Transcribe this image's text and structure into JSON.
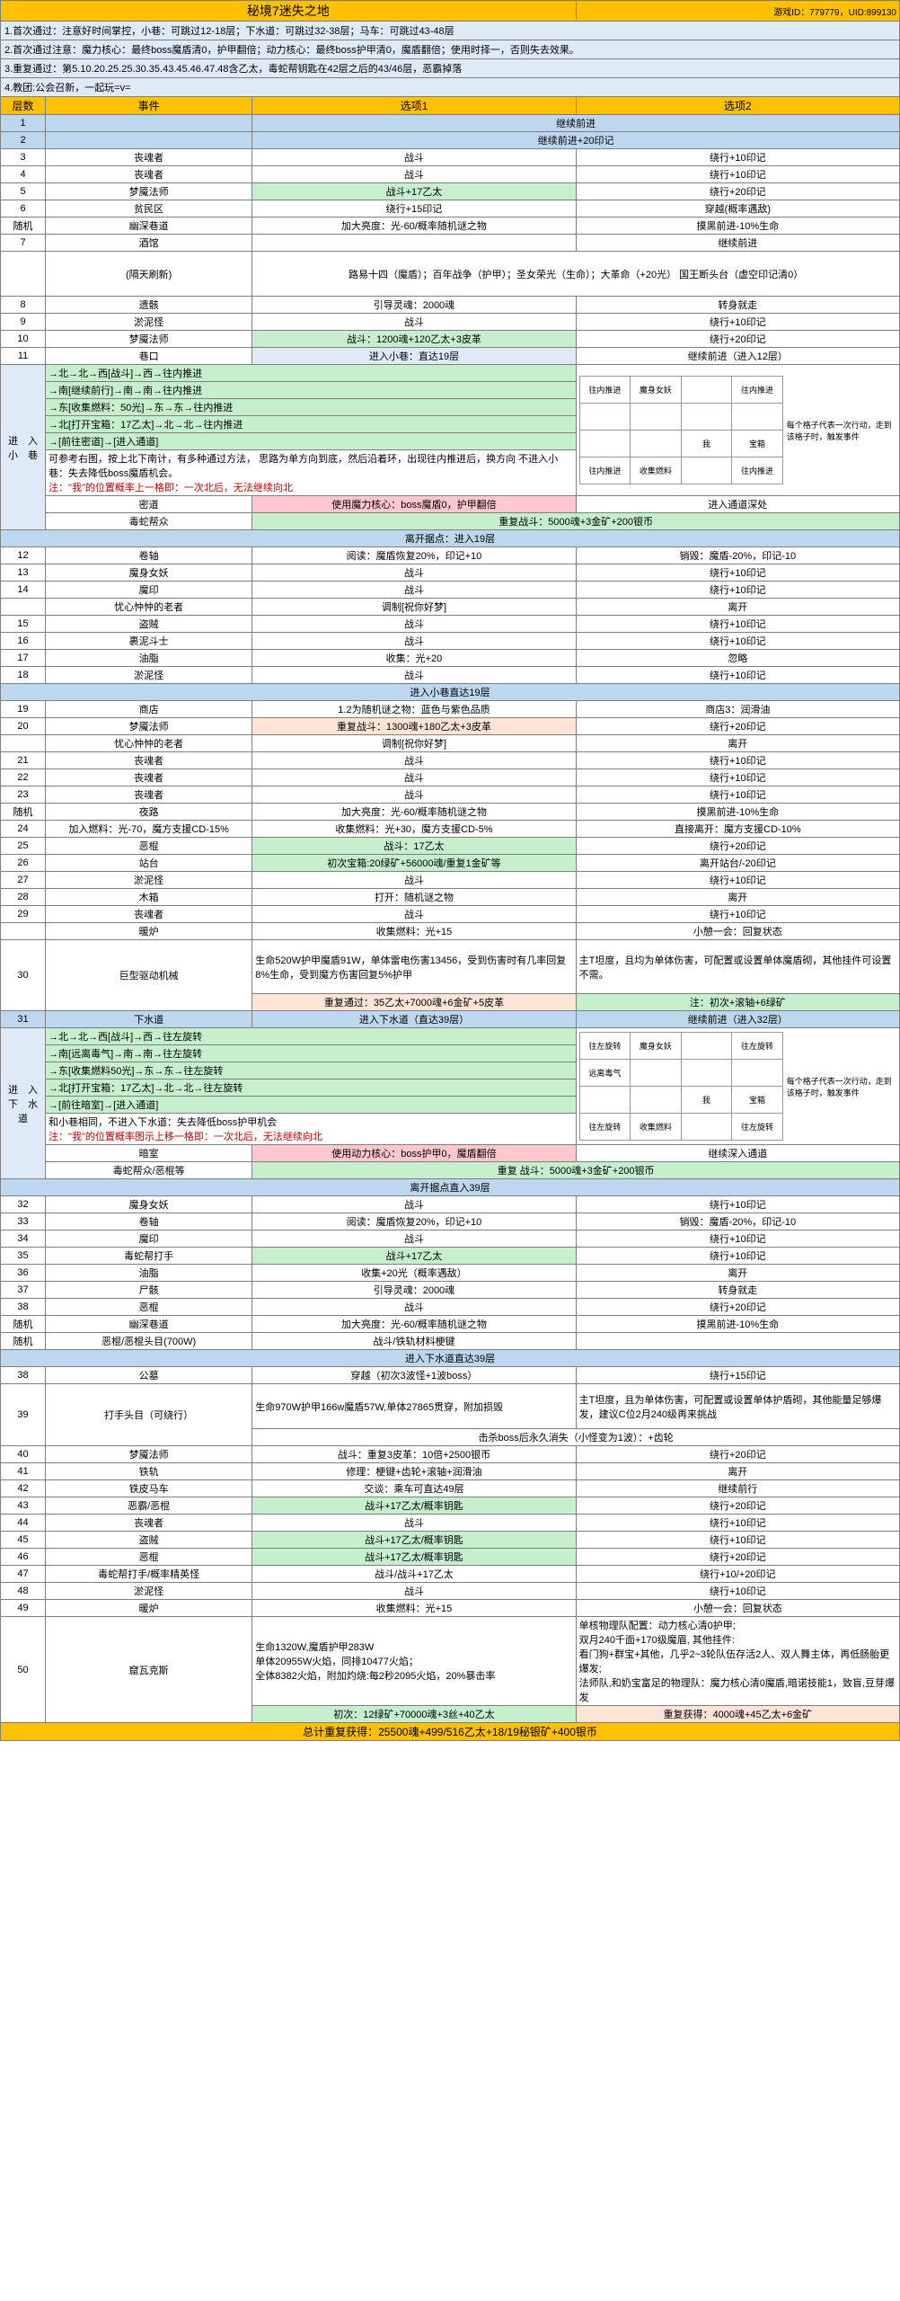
{
  "title": "秘境7迷失之地",
  "gameId": "游戏ID：779779，UID:899130",
  "notes": [
    "1.首次通过：注意好时间掌控，小巷：可跳过12-18层；下水道：可跳过32-38层；马车：可跳过43-48层",
    "2.首次通过注意：魔力核心：最终boss魔盾清0，护甲翻倍；动力核心：最终boss护甲清0，魔盾翻倍；使用时择一，否则失去效果。",
    "3.重复通过：第5.10.20.25.25.30.35.43.45.46.47.48含乙太，毒蛇帮钥匙在42层之后的43/46层，恶霸掉落",
    "4.教团:公会召新，一起玩=v="
  ],
  "headers": {
    "layer": "层数",
    "event": "事件",
    "opt1": "选项1",
    "opt2": "选项2"
  },
  "rows": [
    {
      "n": "1",
      "ev": "",
      "o1": "继续前进",
      "o2": "",
      "cls": "blue-section",
      "span": 2
    },
    {
      "n": "2",
      "ev": "",
      "o1": "继续前进+20印记",
      "o2": "",
      "cls": "blue-section",
      "span": 2
    },
    {
      "n": "3",
      "ev": "丧魂者",
      "o1": "战斗",
      "o2": "绕行+10印记"
    },
    {
      "n": "4",
      "ev": "丧魂者",
      "o1": "战斗",
      "o2": "绕行+10印记"
    },
    {
      "n": "5",
      "ev": "梦魇法师",
      "o1": "战斗+17乙太",
      "o1c": "green-cell",
      "o2": "绕行+20印记"
    },
    {
      "n": "6",
      "ev": "贫民区",
      "o1": "绕行+15印记",
      "o2": "穿越(概率遇敌)"
    },
    {
      "n": "随机",
      "ev": "幽深巷道",
      "o1": "加大亮度：光-60/概率随机谜之物",
      "o2": "摸黑前进-10%生命"
    },
    {
      "n": "7",
      "ev": "酒馆",
      "o1": "",
      "o2": "继续前进",
      "span": 1
    },
    {
      "n": "",
      "ev": "(隔天刷新)",
      "o1": "路易十四（魔盾）；百年战争（护甲）；圣女荣光（生命）；大革命（+20光） 国王断头台（虚空印记清0）",
      "o2": "",
      "span": 2,
      "tall": 1
    },
    {
      "n": "8",
      "ev": "遗骸",
      "o1": "引导灵魂：2000魂",
      "o2": "转身就走"
    },
    {
      "n": "9",
      "ev": "淤泥怪",
      "o1": "战斗",
      "o2": "绕行+10印记"
    },
    {
      "n": "10",
      "ev": "梦魇法师",
      "o1": "战斗：1200魂+120乙太+3皮革",
      "o1c": "green-cell",
      "o2": "绕行+20印记"
    },
    {
      "n": "11",
      "ev": "巷口",
      "o1": "进入小巷：直达19层",
      "o1c": "blue-pale",
      "o2": "继续前进（进入12层）"
    }
  ],
  "alley": {
    "title": "进　入　小　巷",
    "steps": [
      "→北→北→西[战斗]→西→往内推进",
      "→南[继续前行]→南→南→往内推进",
      "→东[收集燃料：50光]→东→东→往内推进",
      "→北[打开宝箱：17乙太]→北→北→往内推进",
      "→[前往密道]→[进入通道]"
    ],
    "desc": "可参考右图，按上北下南计，有多种通过方法，\n思路为单方向到底，然后沿着环，出现往内推进后，换方向\n不进入小巷：失去降低boss魔盾机会。",
    "warn": "注：\"我\"的位置概率上一格即：一次北后，无法继续向北",
    "grid": [
      [
        "往内推进",
        "魔身女妖",
        "",
        "往内推进"
      ],
      [
        "",
        "",
        "",
        ""
      ],
      [
        "",
        "",
        "我",
        "宝箱"
      ],
      [
        "往内推进",
        "收集燃料",
        "",
        "往内推进"
      ]
    ],
    "gridNote": "每个格子代表一次行动，走到该格子时，触发事件",
    "rows": [
      {
        "ev": "密道",
        "o1": "使用魔力核心：boss魔盾0，护甲翻倍",
        "o1c": "red-cell",
        "o2": "进入通道深处"
      },
      {
        "ev": "毒蛇帮众",
        "o1": "重复战斗：5000魂+3金矿+200银币",
        "o1c": "green-cell",
        "o2": ""
      }
    ]
  },
  "section12": {
    "title": "离开据点：进入19层"
  },
  "rows2": [
    {
      "n": "12",
      "ev": "卷轴",
      "o1": "阅读：魔盾恢复20%，印记+10",
      "o2": "销毁：魔盾-20%，印记-10"
    },
    {
      "n": "13",
      "ev": "魔身女妖",
      "o1": "战斗",
      "o2": "绕行+10印记"
    },
    {
      "n": "14",
      "ev": "魔印",
      "o1": "战斗",
      "o2": "绕行+10印记"
    },
    {
      "n": "",
      "ev": "忧心忡忡的老者",
      "o1": "调制[祝你好梦]",
      "o2": "离开"
    },
    {
      "n": "15",
      "ev": "盗贼",
      "o1": "战斗",
      "o2": "绕行+10印记"
    },
    {
      "n": "16",
      "ev": "裹泥斗士",
      "o1": "战斗",
      "o2": "绕行+10印记"
    },
    {
      "n": "17",
      "ev": "油脂",
      "o1": "收集：光+20",
      "o2": "忽略"
    },
    {
      "n": "18",
      "ev": "淤泥怪",
      "o1": "战斗",
      "o2": "绕行+10印记"
    }
  ],
  "section19": {
    "title": "进入小巷直达19层"
  },
  "rows3": [
    {
      "n": "19",
      "ev": "商店",
      "o1": "1.2为随机谜之物：蓝色与紫色品质",
      "o2": "商店3：润滑油"
    },
    {
      "n": "20",
      "ev": "梦魇法师",
      "o1": "重复战斗：1300魂+180乙太+3皮革",
      "o1c": "pink-cell",
      "o2": "绕行+20印记"
    },
    {
      "n": "",
      "ev": "忧心忡忡的老者",
      "o1": "调制[祝你好梦]",
      "o2": "离开"
    },
    {
      "n": "21",
      "ev": "丧魂者",
      "o1": "战斗",
      "o2": "绕行+10印记"
    },
    {
      "n": "22",
      "ev": "丧魂者",
      "o1": "战斗",
      "o2": "绕行+10印记"
    },
    {
      "n": "23",
      "ev": "丧魂者",
      "o1": "战斗",
      "o2": "绕行+10印记"
    },
    {
      "n": "随机",
      "ev": "夜路",
      "o1": "加大亮度：光-60/概率随机谜之物",
      "o2": "摸黑前进-10%生命"
    },
    {
      "n": "24",
      "ev": "加入燃料：光-70，魔方支援CD-15%",
      "o1": "收集燃料：光+30，魔方支援CD-5%",
      "o2": "直接离开：魔方支援CD-10%"
    },
    {
      "n": "25",
      "ev": "恶棍",
      "o1": "战斗：17乙太",
      "o1c": "green-cell",
      "o2": "绕行+20印记"
    },
    {
      "n": "26",
      "ev": "站台",
      "o1": "初次宝箱:20绿矿+56000魂/重复1金矿等",
      "o1c": "green-cell",
      "o2": "离开站台/-20印记"
    },
    {
      "n": "27",
      "ev": "淤泥怪",
      "o1": "战斗",
      "o2": "绕行+10印记"
    },
    {
      "n": "28",
      "ev": "木箱",
      "o1": "打开：随机谜之物",
      "o2": "离开"
    },
    {
      "n": "29",
      "ev": "丧魂者",
      "o1": "战斗",
      "o2": "绕行+10印记"
    },
    {
      "n": "",
      "ev": "暖炉",
      "o1": "收集燃料：光+15",
      "o2": "小憩一会：回复状态"
    }
  ],
  "boss30": {
    "n": "30",
    "ev": "巨型驱动机械",
    "desc": "生命520W护甲魔盾91W，单体雷电伤害13456，受到伤害时有几率回复8%生命，受到魔方伤害回复5%护甲",
    "note": "主T坦度，且均为单体伤害，可配置或设置单体魔盾砌，其他挂件可设置不需。",
    "r1": "重复通过：35乙太+7000魂+6金矿+5皮革",
    "r1c": "pink-cell",
    "r2": "注：初次+滚轴+6绿矿",
    "r2c": "green-cell"
  },
  "row31": {
    "n": "31",
    "ev": "下水道",
    "o1": "进入下水道（直达39层）",
    "o2": "继续前进（进入32层）"
  },
  "sewer": {
    "title": "进　入　下　水　道",
    "steps": [
      "→北→北→西[战斗]→西→往左旋转",
      "→南[远离毒气]→南→南→往左旋转",
      "→东[收集燃料50光]→东→东→往左旋转",
      "→北[打开宝箱：17乙太]→北→北→往左旋转",
      "→[前往暗室]→[进入通道]"
    ],
    "desc": "和小巷相同，不进入下水道：失去降低boss护甲机会",
    "warn": "注：\"我\"的位置概率图示上移一格即：一次北后，无法继续向北",
    "grid": [
      [
        "往左旋转",
        "魔身女妖",
        "",
        "往左旋转"
      ],
      [
        "远离毒气",
        "",
        "",
        ""
      ],
      [
        "",
        "",
        "我",
        "宝箱"
      ],
      [
        "往左旋转",
        "收集燃料",
        "",
        "往左旋转"
      ]
    ],
    "gridNote": "每个格子代表一次行动，走到该格子时，触发事件",
    "rows": [
      {
        "ev": "暗室",
        "o1": "使用动力核心：boss护甲0，魔盾翻倍",
        "o1c": "red-cell",
        "o2": "继续深入通道"
      },
      {
        "ev": "毒蛇帮众/恶棍等",
        "o1": "重复 战斗：5000魂+3金矿+200银币",
        "o1c": "green-cell",
        "o2": ""
      }
    ]
  },
  "section32": {
    "title": "离开据点直入39层"
  },
  "rows4": [
    {
      "n": "32",
      "ev": "魔身女妖",
      "o1": "战斗",
      "o2": "绕行+10印记"
    },
    {
      "n": "33",
      "ev": "卷轴",
      "o1": "阅读：魔盾恢复20%，印记+10",
      "o2": "销毁：魔盾-20%，印记-10"
    },
    {
      "n": "34",
      "ev": "魔印",
      "o1": "战斗",
      "o2": "绕行+10印记"
    },
    {
      "n": "35",
      "ev": "毒蛇帮打手",
      "o1": "战斗+17乙太",
      "o1c": "green-cell",
      "o2": "绕行+10印记"
    },
    {
      "n": "36",
      "ev": "油脂",
      "o1": "收集+20光（概率遇敌）",
      "o2": "离开"
    },
    {
      "n": "37",
      "ev": "尸骸",
      "o1": "引导灵魂：2000魂",
      "o2": "转身就走"
    },
    {
      "n": "38",
      "ev": "恶棍",
      "o1": "战斗",
      "o2": "绕行+20印记"
    },
    {
      "n": "随机",
      "ev": "幽深巷道",
      "o1": "加大亮度：光-60/概率随机谜之物",
      "o2": "摸黑前进-10%生命"
    },
    {
      "n": "随机",
      "ev": "恶棍/恶棍头目(700W)",
      "o1": "战斗/铁轨材料梗键",
      "o2": ""
    }
  ],
  "section39": {
    "title": "进入下水道直达39层"
  },
  "rows5": [
    {
      "n": "38",
      "ev": "公墓",
      "o1": "穿越（初次3波怪+1波boss）",
      "o2": "绕行+15印记"
    }
  ],
  "boss39": {
    "n": "39",
    "ev": "打手头目（可绕行）",
    "desc": "生命970W护甲166w魔盾57W,单体27865贯穿，附加损毁",
    "note": "主T坦度，且为单体伤害，可配置或设置单体护盾砌，其他能量足够爆发，建议C位2月240级再来挑战",
    "extra": "击杀boss后永久消失（小怪变为1波）：+齿轮"
  },
  "rows6": [
    {
      "n": "40",
      "ev": "梦魇法师",
      "o1": "战斗：重复3皮革：10倍+2500银币",
      "o2": "绕行+20印记"
    },
    {
      "n": "41",
      "ev": "铁轨",
      "o1": "修理：梗键+齿轮+滚轴+润滑油",
      "o2": "离开"
    },
    {
      "n": "42",
      "ev": "铁皮马车",
      "o1": "交谈：乘车可直达49层",
      "o2": "继续前行"
    },
    {
      "n": "43",
      "ev": "恶霸/恶棍",
      "o1": "战斗+17乙太/概率钥匙",
      "o1c": "green-cell",
      "o2": "绕行+20印记"
    },
    {
      "n": "44",
      "ev": "丧魂者",
      "o1": "战斗",
      "o2": "绕行+10印记"
    },
    {
      "n": "45",
      "ev": "盗贼",
      "o1": "战斗+17乙太/概率钥匙",
      "o1c": "green-cell",
      "o2": "绕行+10印记"
    },
    {
      "n": "46",
      "ev": "恶棍",
      "o1": "战斗+17乙太/概率钥匙",
      "o1c": "green-cell",
      "o2": "绕行+20印记"
    },
    {
      "n": "47",
      "ev": "毒蛇帮打手/概率精英怪",
      "o1": "战斗/战斗+17乙太",
      "o2": "绕行+10/+20印记"
    },
    {
      "n": "48",
      "ev": "淤泥怪",
      "o1": "战斗",
      "o2": "绕行+10印记"
    },
    {
      "n": "49",
      "ev": "暖炉",
      "o1": "收集燃料：光+15",
      "o2": "小憩一会：回复状态"
    }
  ],
  "boss50": {
    "n": "50",
    "ev": "窟瓦克斯",
    "desc": "生命1320W,魔盾护甲283W\n单体20955W火焰，同排10477火焰；\n全体8382火焰，附加灼烧:每2秒2095火焰，20%暴击率",
    "note": "单核物理队配置：动力核心清0护甲;\n双月240千面+170级魔眉, 其他挂件:\n看门狗+群宝+其他，几乎2~3轮队伍存活2人、双人舞主体，再低肠胎更爆发;\n法师队,和奶宝富足的物理队：魔力核心清0魔盾,暗诺技能1，致盲,豆芽爆发",
    "r1": "初次：12绿矿+70000魂+3丝+40乙太",
    "r1c": "green-cell",
    "r2": "重复获得：4000魂+45乙太+6金矿",
    "r2c": "pink-cell"
  },
  "total": "总计重复获得：25500魂+499/516乙太+18/19秘银矿+400银币"
}
